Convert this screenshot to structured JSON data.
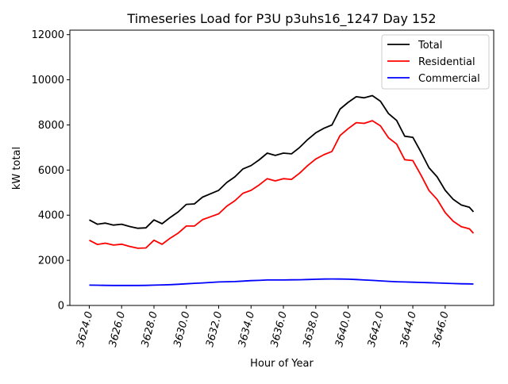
{
  "chart_data": {
    "type": "line",
    "title": "Timeseries Load for P3U p3uhs16_1247  Day 152",
    "xlabel": "Hour of Year",
    "ylabel": "kW total",
    "xlim": [
      3622.8,
      3649.0
    ],
    "ylim": [
      0,
      12200
    ],
    "xticks": [
      3624,
      3626,
      3628,
      3630,
      3632,
      3634,
      3636,
      3638,
      3640,
      3642,
      3644,
      3646
    ],
    "xtick_labels": [
      "3624.0",
      "3626.0",
      "3628.0",
      "3630.0",
      "3632.0",
      "3634.0",
      "3636.0",
      "3638.0",
      "3640.0",
      "3642.0",
      "3644.0",
      "3646.0"
    ],
    "yticks": [
      0,
      2000,
      4000,
      6000,
      8000,
      10000,
      12000
    ],
    "ytick_labels": [
      "0",
      "2000",
      "4000",
      "6000",
      "8000",
      "10000",
      "12000"
    ],
    "grid": false,
    "legend_position": "top-right",
    "x": [
      3624,
      3624.5,
      3625,
      3625.5,
      3626,
      3626.5,
      3627,
      3627.5,
      3628,
      3628.5,
      3629,
      3629.5,
      3630,
      3630.5,
      3631,
      3631.5,
      3632,
      3632.5,
      3633,
      3633.5,
      3634,
      3634.5,
      3635,
      3635.5,
      3636,
      3636.5,
      3637,
      3637.5,
      3638,
      3638.5,
      3639,
      3639.5,
      3640,
      3640.5,
      3641,
      3641.5,
      3642,
      3642.5,
      3643,
      3643.5,
      3644,
      3644.5,
      3645,
      3645.5,
      3646,
      3646.5,
      3647,
      3647.5,
      3647.75
    ],
    "series": [
      {
        "name": "Total",
        "color": "#000000",
        "values": [
          3790,
          3600,
          3650,
          3560,
          3600,
          3500,
          3420,
          3440,
          3790,
          3620,
          3900,
          4150,
          4480,
          4500,
          4800,
          4950,
          5100,
          5450,
          5700,
          6050,
          6200,
          6450,
          6750,
          6650,
          6750,
          6720,
          7000,
          7350,
          7650,
          7850,
          8000,
          8700,
          9000,
          9250,
          9200,
          9300,
          9050,
          8500,
          8200,
          7500,
          7450,
          6800,
          6100,
          5700,
          5100,
          4700,
          4450,
          4350,
          4150
        ]
      },
      {
        "name": "Residential",
        "color": "#ff0000",
        "values": [
          2890,
          2705,
          2760,
          2675,
          2715,
          2615,
          2535,
          2550,
          2890,
          2710,
          2980,
          3210,
          3520,
          3520,
          3800,
          3930,
          4060,
          4400,
          4640,
          4970,
          5100,
          5340,
          5620,
          5520,
          5620,
          5585,
          5860,
          6200,
          6490,
          6680,
          6825,
          7530,
          7835,
          8100,
          8070,
          8190,
          7960,
          7430,
          7150,
          6460,
          6420,
          5780,
          5090,
          4700,
          4115,
          3730,
          3490,
          3395,
          3200
        ]
      },
      {
        "name": "Commercial",
        "color": "#0000ff",
        "values": [
          900,
          895,
          890,
          885,
          885,
          885,
          885,
          890,
          900,
          910,
          920,
          940,
          960,
          980,
          1000,
          1020,
          1040,
          1050,
          1060,
          1080,
          1100,
          1110,
          1130,
          1130,
          1130,
          1135,
          1140,
          1150,
          1160,
          1170,
          1175,
          1170,
          1165,
          1150,
          1130,
          1110,
          1090,
          1070,
          1050,
          1040,
          1030,
          1020,
          1010,
          1000,
          985,
          970,
          960,
          955,
          950
        ]
      }
    ]
  }
}
